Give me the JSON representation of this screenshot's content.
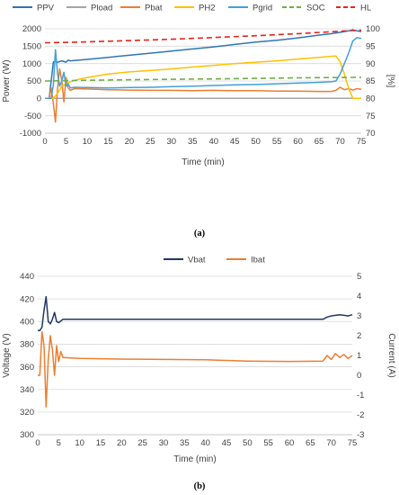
{
  "chart_data": [
    {
      "type": "line",
      "panel_label": "(a)",
      "legend": {
        "position": "top"
      },
      "xlabel": "Time (min)",
      "ylabel": "Power (W)",
      "y2label": "[%]",
      "xlim": [
        0,
        75
      ],
      "ylim": [
        -1000,
        2000
      ],
      "y2lim": [
        70,
        100
      ],
      "xticks": [
        0,
        5,
        10,
        15,
        20,
        25,
        30,
        35,
        40,
        45,
        50,
        55,
        60,
        65,
        70,
        75
      ],
      "yticks": [
        -1000,
        -500,
        0,
        500,
        1000,
        1500,
        2000
      ],
      "y2ticks": [
        70,
        75,
        80,
        85,
        90,
        95,
        100
      ],
      "grid": true,
      "series": [
        {
          "name": "PPV",
          "axis": "left",
          "color": "#2e75b6",
          "dash": "",
          "points": [
            [
              0,
              0
            ],
            [
              1,
              0
            ],
            [
              2,
              1050
            ],
            [
              2.5,
              1060
            ],
            [
              3,
              1040
            ],
            [
              4,
              1080
            ],
            [
              5,
              1040
            ],
            [
              5.5,
              1100
            ],
            [
              6,
              1080
            ],
            [
              7,
              1090
            ],
            [
              10,
              1120
            ],
            [
              15,
              1180
            ],
            [
              20,
              1240
            ],
            [
              25,
              1300
            ],
            [
              30,
              1360
            ],
            [
              35,
              1420
            ],
            [
              40,
              1480
            ],
            [
              45,
              1550
            ],
            [
              50,
              1620
            ],
            [
              55,
              1670
            ],
            [
              60,
              1740
            ],
            [
              65,
              1820
            ],
            [
              68,
              1860
            ],
            [
              70,
              1900
            ],
            [
              72,
              1940
            ],
            [
              73,
              1970
            ],
            [
              74,
              1940
            ],
            [
              75,
              1920
            ]
          ]
        },
        {
          "name": "Pload",
          "axis": "left",
          "color": "#a5a5a5",
          "dash": "",
          "points": [
            [
              0,
              0
            ],
            [
              75,
              0
            ]
          ]
        },
        {
          "name": "Pbat",
          "axis": "left",
          "color": "#ed7d31",
          "dash": "",
          "points": [
            [
              0,
              0
            ],
            [
              1,
              0
            ],
            [
              1.5,
              300
            ],
            [
              2,
              -150
            ],
            [
              2.5,
              -680
            ],
            [
              3,
              300
            ],
            [
              3.5,
              850
            ],
            [
              4,
              500
            ],
            [
              4.5,
              -100
            ],
            [
              5,
              600
            ],
            [
              5.5,
              300
            ],
            [
              6,
              230
            ],
            [
              7,
              280
            ],
            [
              10,
              270
            ],
            [
              15,
              250
            ],
            [
              20,
              240
            ],
            [
              25,
              230
            ],
            [
              30,
              230
            ],
            [
              35,
              220
            ],
            [
              40,
              230
            ],
            [
              45,
              220
            ],
            [
              50,
              220
            ],
            [
              55,
              210
            ],
            [
              60,
              210
            ],
            [
              65,
              200
            ],
            [
              68,
              200
            ],
            [
              69,
              230
            ],
            [
              70,
              320
            ],
            [
              71,
              250
            ],
            [
              72,
              280
            ],
            [
              73,
              240
            ],
            [
              74,
              280
            ],
            [
              75,
              260
            ]
          ]
        },
        {
          "name": "PH2",
          "axis": "left",
          "color": "#ffc000",
          "dash": "",
          "points": [
            [
              0,
              0
            ],
            [
              2,
              0
            ],
            [
              3,
              150
            ],
            [
              4,
              350
            ],
            [
              5,
              420
            ],
            [
              6,
              480
            ],
            [
              8,
              550
            ],
            [
              10,
              600
            ],
            [
              15,
              700
            ],
            [
              20,
              760
            ],
            [
              25,
              800
            ],
            [
              30,
              850
            ],
            [
              35,
              900
            ],
            [
              40,
              950
            ],
            [
              45,
              1000
            ],
            [
              50,
              1040
            ],
            [
              55,
              1080
            ],
            [
              60,
              1130
            ],
            [
              65,
              1180
            ],
            [
              68,
              1210
            ],
            [
              69,
              1220
            ],
            [
              70,
              1050
            ],
            [
              71,
              700
            ],
            [
              72,
              300
            ],
            [
              73,
              0
            ],
            [
              75,
              0
            ]
          ]
        },
        {
          "name": "Pgrid",
          "axis": "left",
          "color": "#41a0d8",
          "dash": "",
          "points": [
            [
              0,
              0
            ],
            [
              1.5,
              0
            ],
            [
              2,
              400
            ],
            [
              2.5,
              1400
            ],
            [
              3,
              700
            ],
            [
              3.5,
              350
            ],
            [
              4,
              500
            ],
            [
              4.5,
              750
            ],
            [
              5,
              350
            ],
            [
              5.5,
              420
            ],
            [
              6,
              300
            ],
            [
              7,
              320
            ],
            [
              10,
              310
            ],
            [
              15,
              300
            ],
            [
              20,
              310
            ],
            [
              25,
              320
            ],
            [
              30,
              340
            ],
            [
              35,
              350
            ],
            [
              40,
              370
            ],
            [
              45,
              390
            ],
            [
              50,
              400
            ],
            [
              55,
              420
            ],
            [
              60,
              440
            ],
            [
              65,
              460
            ],
            [
              68,
              480
            ],
            [
              69,
              500
            ],
            [
              70,
              700
            ],
            [
              71,
              1000
            ],
            [
              72,
              1300
            ],
            [
              73,
              1650
            ],
            [
              74,
              1750
            ],
            [
              75,
              1720
            ]
          ]
        },
        {
          "name": "SOC",
          "axis": "right",
          "color": "#70ad47",
          "dash": "6,4",
          "points": [
            [
              0,
              85
            ],
            [
              5,
              85.1
            ],
            [
              10,
              85.2
            ],
            [
              20,
              85.35
            ],
            [
              30,
              85.5
            ],
            [
              40,
              85.6
            ],
            [
              50,
              85.75
            ],
            [
              60,
              85.9
            ],
            [
              70,
              86
            ],
            [
              75,
              86.05
            ]
          ]
        },
        {
          "name": "HL",
          "axis": "right",
          "color": "#e8221b",
          "dash": "6,4",
          "points": [
            [
              0,
              96
            ],
            [
              5,
              96.1
            ],
            [
              10,
              96.25
            ],
            [
              20,
              96.6
            ],
            [
              30,
              97
            ],
            [
              40,
              97.5
            ],
            [
              50,
              98
            ],
            [
              60,
              98.6
            ],
            [
              70,
              99.3
            ],
            [
              75,
              99.6
            ]
          ]
        }
      ]
    },
    {
      "type": "line",
      "panel_label": "(b)",
      "legend": {
        "position": "top"
      },
      "xlabel": "Time (min)",
      "ylabel": "Voltage (V)",
      "y2label": "Current (A)",
      "xlim": [
        0,
        75
      ],
      "ylim": [
        300,
        440
      ],
      "y2lim": [
        -3,
        5
      ],
      "xticks": [
        0,
        5,
        10,
        15,
        20,
        25,
        30,
        35,
        40,
        45,
        50,
        55,
        60,
        65,
        70,
        75
      ],
      "yticks": [
        300,
        320,
        340,
        360,
        380,
        400,
        420,
        440
      ],
      "y2ticks": [
        -3,
        -2,
        -1,
        0,
        1,
        2,
        3,
        4,
        5
      ],
      "grid": true,
      "series": [
        {
          "name": "Vbat",
          "axis": "left",
          "color": "#1f3864",
          "dash": "",
          "points": [
            [
              0,
              392
            ],
            [
              0.5,
              392
            ],
            [
              1,
              395
            ],
            [
              1.5,
              410
            ],
            [
              2,
              422
            ],
            [
              2.5,
              400
            ],
            [
              3,
              398
            ],
            [
              3.5,
              402
            ],
            [
              4,
              408
            ],
            [
              4.5,
              400
            ],
            [
              5,
              399
            ],
            [
              6,
              402
            ],
            [
              10,
              402
            ],
            [
              20,
              402
            ],
            [
              30,
              402
            ],
            [
              40,
              402
            ],
            [
              50,
              402
            ],
            [
              60,
              402
            ],
            [
              68,
              402
            ],
            [
              69,
              404
            ],
            [
              70,
              405
            ],
            [
              72,
              406
            ],
            [
              74,
              405
            ],
            [
              75,
              406
            ]
          ]
        },
        {
          "name": "Ibat",
          "axis": "right",
          "color": "#ed7d31",
          "dash": "",
          "points": [
            [
              0,
              0
            ],
            [
              0.5,
              0
            ],
            [
              1,
              2.2
            ],
            [
              1.5,
              1.5
            ],
            [
              2,
              -1.6
            ],
            [
              2.5,
              0.8
            ],
            [
              3,
              2
            ],
            [
              3.5,
              1.3
            ],
            [
              4,
              0
            ],
            [
              4.5,
              1.5
            ],
            [
              5,
              0.7
            ],
            [
              5.5,
              1.2
            ],
            [
              6,
              0.9
            ],
            [
              10,
              0.85
            ],
            [
              20,
              0.82
            ],
            [
              30,
              0.8
            ],
            [
              40,
              0.78
            ],
            [
              50,
              0.72
            ],
            [
              60,
              0.7
            ],
            [
              68,
              0.72
            ],
            [
              69,
              1
            ],
            [
              70,
              0.8
            ],
            [
              71,
              1.1
            ],
            [
              72,
              0.9
            ],
            [
              73,
              1.05
            ],
            [
              74,
              0.85
            ],
            [
              75,
              1
            ]
          ]
        }
      ]
    }
  ]
}
